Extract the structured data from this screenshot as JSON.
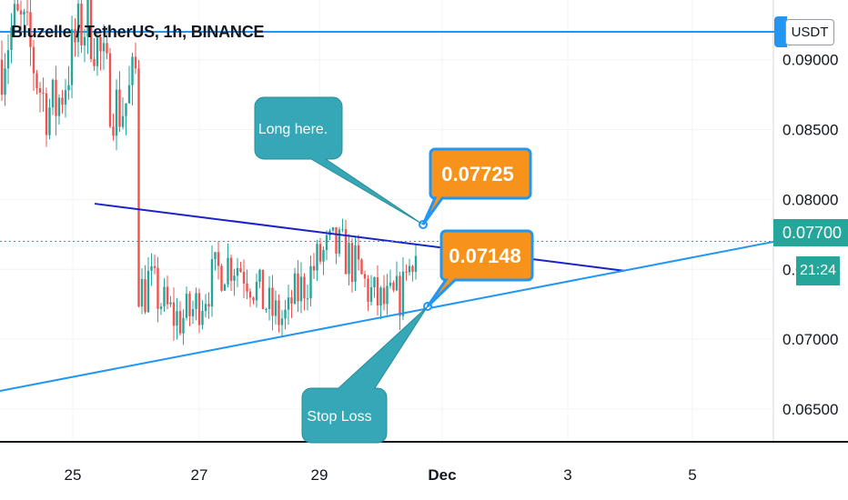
{
  "header": {
    "symbol_title": "Bluzelle / TetherUS, 1h, BINANCE",
    "currency": "USDT"
  },
  "colors": {
    "up": "#26a69a",
    "down": "#ef5350",
    "channel_top": "#1a23c8",
    "channel_bottom": "#2196f3",
    "callout_teal": "#35a7b6",
    "callout_orange": "#f7931a",
    "callout_border": "#2196f3"
  },
  "price_scale": {
    "ticks": [
      "0.09000",
      "0.08500",
      "0.08000",
      "0.07500",
      "0.07000",
      "0.06500"
    ],
    "current_price": "0.07700",
    "countdown": "21:24"
  },
  "time_axis": {
    "ticks": [
      "25",
      "27",
      "29",
      "Dec",
      "3",
      "5"
    ]
  },
  "annotations": {
    "long_note": "Long here.",
    "stop_note": "Stop Loss",
    "entry_price": "0.07725",
    "stop_price": "0.07148"
  },
  "chart_data": {
    "type": "candlestick",
    "title": "Bluzelle / TetherUS, 1h, BINANCE",
    "unit": "USDT",
    "ylim": [
      0.0624,
      0.0935
    ],
    "x_ticks": [
      "25",
      "27",
      "29",
      "Dec",
      "3",
      "5"
    ],
    "y_ticks": [
      0.09,
      0.085,
      0.08,
      0.075,
      0.07,
      0.065
    ],
    "grid": true,
    "last_price": 0.077,
    "levels": {
      "resistance": 0.092
    },
    "trendlines": [
      {
        "name": "descending",
        "from": [
          "26",
          0.0797
        ],
        "to": [
          "4",
          0.0749
        ]
      },
      {
        "name": "ascending",
        "from": [
          "24",
          0.0663
        ],
        "to": [
          "6",
          0.078
        ]
      }
    ],
    "segments": [
      {
        "from": "24",
        "to": "26",
        "range": [
          0.085,
          0.0935
        ],
        "trend": "flat"
      },
      {
        "from": "26",
        "to": "26",
        "range": [
          0.07,
          0.087
        ],
        "trend": "down"
      },
      {
        "from": "26",
        "to": "30",
        "range": [
          0.068,
          0.079
        ],
        "trend": "sideways"
      }
    ]
  }
}
